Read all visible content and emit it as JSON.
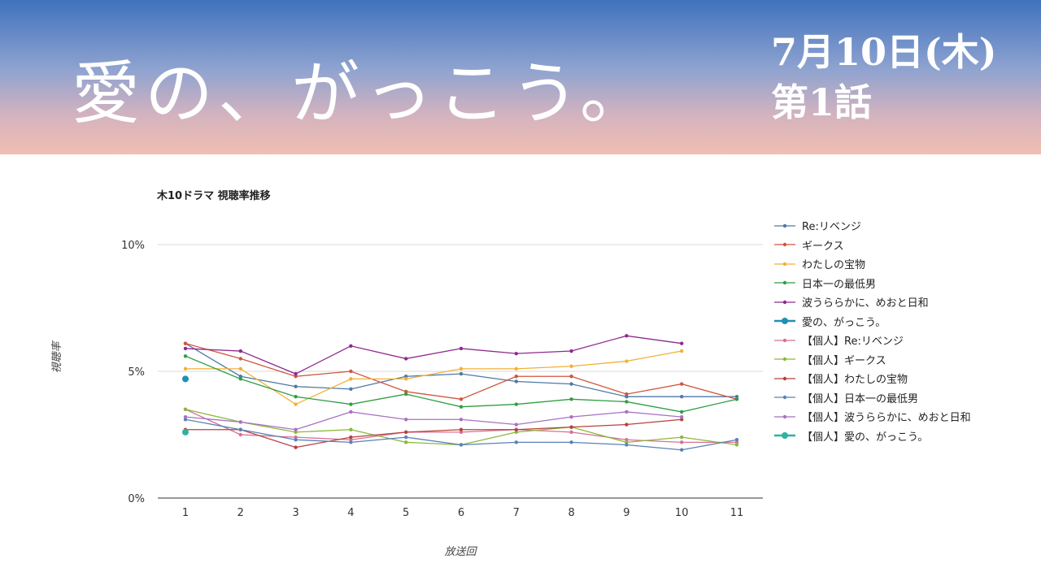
{
  "banner": {
    "show_title": "愛の、がっこう。",
    "air_date": "7月10日(木)",
    "episode": "第1話"
  },
  "chart_data": {
    "type": "line",
    "title": "木10ドラマ 視聴率推移",
    "xlabel": "放送回",
    "ylabel": "視聴率",
    "x": [
      1,
      2,
      3,
      4,
      5,
      6,
      7,
      8,
      9,
      10,
      11
    ],
    "ylim": [
      0,
      10
    ],
    "yticks": [
      {
        "value": 0,
        "label": "0%"
      },
      {
        "value": 5,
        "label": "5%"
      },
      {
        "value": 10,
        "label": "10%"
      }
    ],
    "grid": true,
    "legend_position": "right",
    "series": [
      {
        "name": "Re:リベンジ",
        "color": "#4e79a7",
        "values": [
          6.1,
          4.8,
          4.4,
          4.3,
          4.8,
          4.9,
          4.6,
          4.5,
          4.0,
          4.0,
          4.0
        ]
      },
      {
        "name": "ギークス",
        "color": "#d1553e",
        "values": [
          6.1,
          5.5,
          4.8,
          5.0,
          4.2,
          3.9,
          4.8,
          4.8,
          4.1,
          4.5,
          3.9
        ]
      },
      {
        "name": "わたしの宝物",
        "color": "#f2b134",
        "values": [
          5.1,
          5.1,
          3.7,
          4.7,
          4.7,
          5.1,
          5.1,
          5.2,
          5.4,
          5.8,
          null
        ]
      },
      {
        "name": "日本一の最低男",
        "color": "#2f9e44",
        "values": [
          5.6,
          4.7,
          4.0,
          3.7,
          4.1,
          3.6,
          3.7,
          3.9,
          3.8,
          3.4,
          3.9
        ]
      },
      {
        "name": "波うららかに、めおと日和",
        "color": "#8e2a8e",
        "values": [
          5.9,
          5.8,
          4.9,
          6.0,
          5.5,
          5.9,
          5.7,
          5.8,
          6.4,
          6.1,
          null
        ]
      },
      {
        "name": "愛の、がっこう。",
        "color": "#1f8fb8",
        "highlight": true,
        "values": [
          4.7,
          null,
          null,
          null,
          null,
          null,
          null,
          null,
          null,
          null,
          null
        ]
      },
      {
        "name": "【個人】Re:リベンジ",
        "color": "#d87093",
        "values": [
          3.5,
          2.5,
          2.4,
          2.3,
          2.6,
          2.6,
          2.7,
          2.6,
          2.3,
          2.2,
          2.2
        ]
      },
      {
        "name": "【個人】ギークス",
        "color": "#8ab83a",
        "values": [
          3.5,
          3.0,
          2.6,
          2.7,
          2.2,
          2.1,
          2.6,
          2.8,
          2.2,
          2.4,
          2.1
        ]
      },
      {
        "name": "【個人】わたしの宝物",
        "color": "#b5423f",
        "values": [
          2.7,
          2.7,
          2.0,
          2.4,
          2.6,
          2.7,
          2.7,
          2.8,
          2.9,
          3.1,
          null
        ]
      },
      {
        "name": "【個人】日本一の最低男",
        "color": "#5a82b4",
        "values": [
          3.1,
          2.7,
          2.3,
          2.2,
          2.4,
          2.1,
          2.2,
          2.2,
          2.1,
          1.9,
          2.3
        ]
      },
      {
        "name": "【個人】波うららかに、めおと日和",
        "color": "#a672c1",
        "values": [
          3.2,
          3.0,
          2.7,
          3.4,
          3.1,
          3.1,
          2.9,
          3.2,
          3.4,
          3.2,
          null
        ]
      },
      {
        "name": "【個人】愛の、がっこう。",
        "color": "#2bb3a3",
        "highlight": true,
        "values": [
          2.6,
          null,
          null,
          null,
          null,
          null,
          null,
          null,
          null,
          null,
          null
        ]
      }
    ]
  }
}
